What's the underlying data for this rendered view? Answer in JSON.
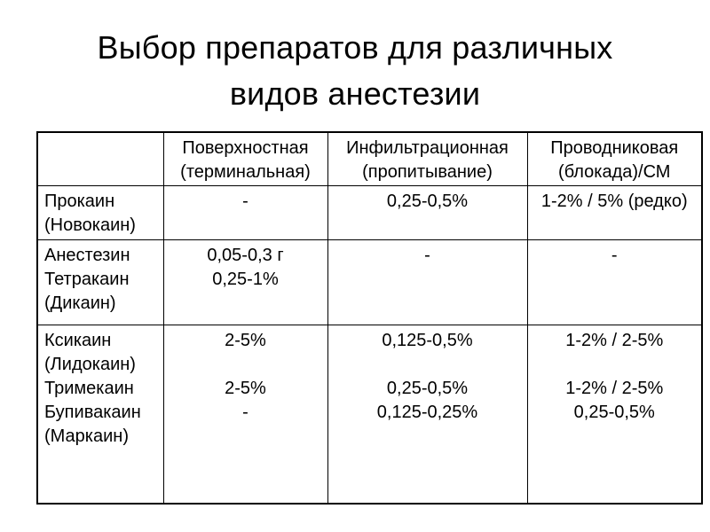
{
  "slide": {
    "title_lines": [
      "Выбор препаратов для различных",
      "видов анестезии"
    ]
  },
  "table": {
    "header": [
      [
        ""
      ],
      [
        "Поверхностная",
        "(терминальная)"
      ],
      [
        "Инфильтрационная",
        "(пропитывание)"
      ],
      [
        "Проводниковая",
        "(блокада)/СМ"
      ]
    ],
    "rows": [
      {
        "drug_lines": [
          "Прокаин",
          "(Новокаин)"
        ],
        "surface_lines": [
          "-"
        ],
        "infiltration_lines": [
          "0,25-0,5%"
        ],
        "conduction_lines": [
          "1-2% / 5% (редко)"
        ]
      },
      {
        "drug_lines": [
          "Анестезин",
          "Тетракаин",
          "(Дикаин)"
        ],
        "surface_lines": [
          "0,05-0,3 г",
          "0,25-1%"
        ],
        "infiltration_lines": [
          "-"
        ],
        "conduction_lines": [
          "-"
        ]
      },
      {
        "drug_lines": [
          "Ксикаин",
          "(Лидокаин)",
          "Тримекаин",
          "Бупивакаин",
          "(Маркаин)"
        ],
        "surface_lines": [
          "2-5%",
          "",
          "2-5%",
          "-"
        ],
        "infiltration_lines": [
          "0,125-0,5%",
          "",
          "0,25-0,5%",
          "0,125-0,25%"
        ],
        "conduction_lines": [
          "1-2% / 2-5%",
          "",
          "1-2% / 2-5%",
          "0,25-0,5%"
        ]
      }
    ]
  },
  "colors": {
    "text": "#000000",
    "background": "#ffffff",
    "table_border": "#000000"
  }
}
